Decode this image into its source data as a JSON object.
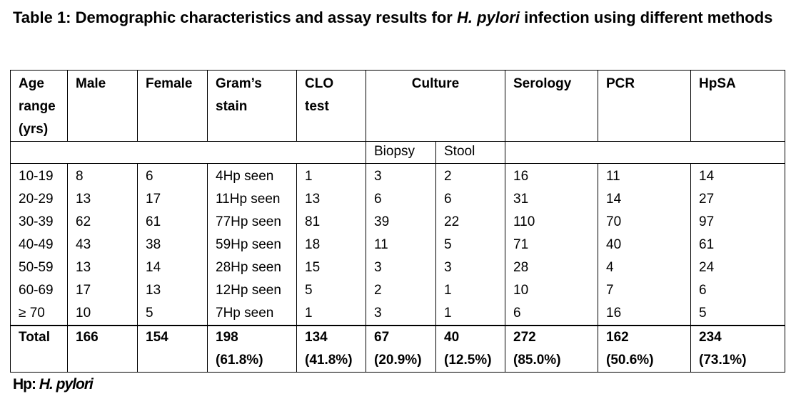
{
  "caption": {
    "prefix": "Table 1: Demographic characteristics and assay results for ",
    "species": "H. pylori",
    "suffix": " infection using different methods"
  },
  "table": {
    "headers": {
      "age": "Age range (yrs)",
      "male": "Male",
      "female": "Female",
      "gram": "Gram’s stain",
      "clo": "CLO test",
      "culture": "Culture",
      "serology": "Serology",
      "pcr": "PCR",
      "hpsa": "HpSA"
    },
    "culture_sub": {
      "biopsy": "Biopsy",
      "stool": "Stool"
    },
    "rows": [
      [
        "10-19",
        "8",
        "6",
        "4Hp seen",
        "1",
        "3",
        "2",
        "16",
        "11",
        "14"
      ],
      [
        "20-29",
        "13",
        "17",
        "11Hp seen",
        "13",
        "6",
        "6",
        "31",
        "14",
        "27"
      ],
      [
        "30-39",
        "62",
        "61",
        "77Hp seen",
        "81",
        "39",
        "22",
        "110",
        "70",
        "97"
      ],
      [
        "40-49",
        "43",
        "38",
        "59Hp seen",
        "18",
        "11",
        "5",
        "71",
        "40",
        "61"
      ],
      [
        "50-59",
        "13",
        "14",
        "28Hp seen",
        "15",
        "3",
        "3",
        "28",
        "4",
        "24"
      ],
      [
        "60-69",
        "17",
        "13",
        "12Hp seen",
        "5",
        "2",
        "1",
        "10",
        "7",
        "6"
      ],
      [
        "≥ 70",
        "10",
        "5",
        "7Hp seen",
        "1",
        "3",
        "1",
        "6",
        "16",
        "5"
      ]
    ],
    "total": {
      "label": "Total",
      "male": "166",
      "female": "154",
      "gram": "198",
      "gram_pct": "(61.8%)",
      "clo": "134",
      "clo_pct": "(41.8%)",
      "biopsy": "67",
      "biopsy_pct": "(20.9%)",
      "stool": "40",
      "stool_pct": "(12.5%)",
      "serology": "272",
      "serology_pct": "(85.0%)",
      "pcr": "162",
      "pcr_pct": "(50.6%)",
      "hpsa": "234",
      "hpsa_pct": "(73.1%)"
    }
  },
  "footnote": {
    "abbr": "Hp: ",
    "species": "H. pylori"
  }
}
